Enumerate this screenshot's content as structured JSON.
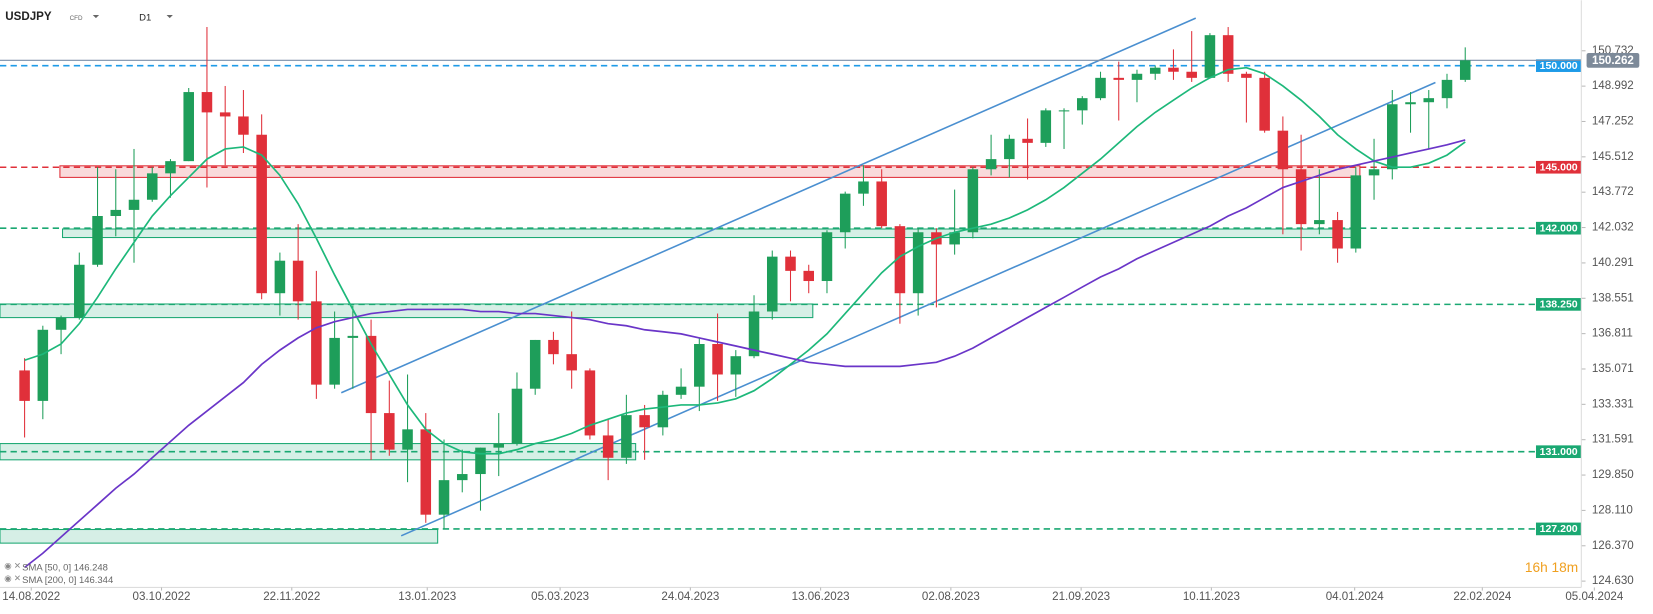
{
  "chart_data": {
    "type": "candlestick",
    "symbol": "USDJPY",
    "instrument": "CFD",
    "timeframe": "D1",
    "countdown": "16h 18m",
    "up_color": "#1e9e5a",
    "down_color": "#e0303a",
    "x": [
      "08.08.2022",
      "15.08.2022",
      "22.08.2022",
      "29.08.2022",
      "05.09.2022",
      "12.09.2022",
      "19.09.2022",
      "26.09.2022",
      "03.10.2022",
      "10.10.2022",
      "17.10.2022",
      "24.10.2022",
      "31.10.2022",
      "07.11.2022",
      "14.11.2022",
      "21.11.2022",
      "28.11.2022",
      "05.12.2022",
      "12.12.2022",
      "19.12.2022",
      "26.12.2022",
      "02.01.2023",
      "09.01.2023",
      "16.01.2023",
      "23.01.2023",
      "30.01.2023",
      "06.02.2023",
      "13.02.2023",
      "20.02.2023",
      "27.02.2023",
      "06.03.2023",
      "13.03.2023",
      "20.03.2023",
      "27.03.2023",
      "03.04.2023",
      "10.04.2023",
      "17.04.2023",
      "24.04.2023",
      "01.05.2023",
      "08.05.2023",
      "15.05.2023",
      "22.05.2023",
      "29.05.2023",
      "05.06.2023",
      "12.06.2023",
      "19.06.2023",
      "26.06.2023",
      "03.07.2023",
      "10.07.2023",
      "17.07.2023",
      "24.07.2023",
      "31.07.2023",
      "07.08.2023",
      "14.08.2023",
      "21.08.2023",
      "28.08.2023",
      "04.09.2023",
      "11.09.2023",
      "18.09.2023",
      "25.09.2023",
      "02.10.2023",
      "09.10.2023",
      "16.10.2023",
      "23.10.2023",
      "30.10.2023",
      "06.11.2023",
      "13.11.2023",
      "20.11.2023",
      "27.11.2023",
      "04.12.2023",
      "11.12.2023",
      "18.12.2023",
      "25.12.2023",
      "01.01.2024",
      "08.01.2024",
      "15.01.2024",
      "22.01.2024",
      "29.01.2024",
      "05.02.2024",
      "12.02.2024"
    ],
    "open": [
      135.0,
      133.5,
      137.0,
      137.6,
      140.2,
      142.6,
      142.9,
      143.4,
      144.7,
      145.3,
      148.7,
      147.7,
      147.5,
      146.6,
      138.8,
      140.4,
      138.4,
      134.3,
      136.6,
      136.7,
      132.9,
      131.1,
      132.1,
      127.9,
      129.6,
      129.9,
      131.2,
      131.4,
      134.1,
      136.5,
      135.8,
      135.0,
      131.8,
      130.7,
      132.8,
      132.2,
      133.8,
      134.2,
      136.3,
      134.8,
      135.7,
      137.9,
      140.6,
      139.9,
      139.4,
      141.8,
      143.7,
      144.3,
      142.1,
      138.8,
      141.8,
      141.2,
      141.8,
      144.9,
      145.4,
      146.4,
      146.2,
      147.8,
      147.8,
      148.4,
      149.4,
      149.3,
      149.6,
      149.9,
      149.7,
      149.4,
      151.5,
      149.6,
      149.4,
      146.8,
      144.9,
      142.2,
      142.4,
      141.0,
      144.6,
      144.9,
      148.1,
      148.2,
      148.4,
      149.3
    ],
    "high": [
      135.6,
      137.2,
      137.7,
      140.8,
      145.0,
      144.9,
      145.9,
      145.0,
      145.4,
      148.9,
      151.9,
      149.0,
      148.8,
      147.6,
      140.8,
      142.2,
      139.9,
      137.9,
      138.2,
      137.5,
      134.5,
      134.8,
      132.9,
      131.6,
      131.1,
      131.2,
      132.9,
      134.9,
      136.5,
      136.9,
      137.9,
      135.1,
      132.6,
      133.8,
      133.3,
      134.0,
      135.1,
      136.6,
      137.8,
      136.0,
      138.7,
      140.9,
      140.9,
      140.2,
      141.9,
      143.8,
      145.1,
      144.9,
      142.2,
      142.0,
      142.0,
      143.9,
      145.0,
      146.6,
      146.6,
      147.4,
      147.9,
      147.9,
      148.5,
      149.7,
      150.2,
      149.8,
      150.0,
      150.8,
      151.7,
      151.6,
      151.9,
      149.7,
      149.7,
      147.5,
      146.6,
      144.9,
      142.8,
      145.0,
      146.4,
      148.8,
      148.7,
      148.8,
      149.6,
      150.9
    ],
    "low": [
      131.7,
      132.6,
      135.8,
      137.5,
      140.1,
      141.6,
      140.3,
      143.3,
      143.5,
      145.3,
      144.0,
      145.1,
      145.7,
      138.5,
      137.7,
      137.5,
      133.6,
      134.1,
      134.1,
      130.6,
      130.8,
      129.5,
      127.5,
      127.2,
      129.0,
      128.1,
      129.8,
      131.3,
      133.8,
      135.3,
      134.1,
      131.6,
      129.6,
      130.4,
      130.6,
      131.8,
      133.6,
      133.0,
      133.5,
      133.7,
      135.6,
      137.5,
      138.4,
      138.8,
      138.8,
      141.0,
      143.1,
      142.0,
      137.3,
      137.7,
      138.1,
      140.7,
      141.5,
      144.6,
      144.5,
      144.4,
      146.0,
      145.9,
      147.1,
      148.3,
      147.3,
      148.2,
      149.3,
      149.3,
      149.2,
      149.4,
      149.2,
      147.2,
      146.7,
      141.7,
      140.9,
      141.7,
      140.3,
      140.8,
      143.4,
      144.4,
      146.7,
      145.9,
      147.9,
      149.2
    ],
    "close": [
      133.5,
      137.0,
      137.6,
      140.2,
      142.6,
      142.9,
      143.4,
      144.7,
      145.3,
      148.7,
      147.7,
      147.5,
      146.6,
      138.8,
      140.4,
      138.4,
      134.3,
      136.6,
      136.7,
      132.9,
      131.1,
      132.1,
      127.9,
      129.6,
      129.9,
      131.2,
      131.4,
      134.1,
      136.5,
      135.8,
      135.0,
      131.8,
      130.7,
      132.8,
      132.2,
      133.8,
      134.2,
      136.3,
      134.8,
      135.7,
      137.9,
      140.6,
      139.9,
      139.4,
      141.8,
      143.7,
      144.3,
      142.1,
      138.8,
      141.8,
      141.2,
      141.8,
      144.9,
      145.4,
      146.4,
      146.2,
      147.8,
      147.8,
      148.4,
      149.4,
      149.3,
      149.6,
      149.9,
      149.7,
      149.4,
      151.5,
      149.6,
      149.4,
      146.8,
      144.9,
      142.2,
      142.4,
      141.0,
      144.6,
      144.9,
      148.1,
      148.2,
      148.4,
      149.3,
      150.262
    ],
    "indicators": [
      {
        "name": "SMA [50, 0]",
        "color": "#1db87a",
        "values": [
          135.5,
          135.8,
          136.3,
          137.3,
          138.6,
          140.0,
          141.3,
          142.6,
          143.6,
          144.5,
          145.4,
          145.9,
          146.0,
          145.6,
          144.6,
          143.2,
          141.5,
          139.7,
          138.0,
          136.3,
          134.8,
          133.3,
          132.1,
          131.4,
          131.0,
          130.9,
          130.9,
          131.1,
          131.4,
          131.6,
          131.9,
          132.3,
          132.6,
          132.9,
          133.1,
          133.2,
          133.3,
          133.3,
          133.4,
          133.6,
          134.0,
          134.6,
          135.3,
          136.0,
          136.8,
          137.8,
          138.8,
          139.8,
          140.6,
          141.1,
          141.5,
          141.8,
          142.0,
          142.2,
          142.5,
          142.9,
          143.4,
          144.0,
          144.7,
          145.4,
          146.2,
          147.0,
          147.7,
          148.3,
          148.9,
          149.4,
          149.8,
          149.9,
          149.6,
          149.0,
          148.3,
          147.5,
          146.6,
          145.9,
          145.3,
          145.0,
          145.0,
          145.2,
          145.6,
          146.248
        ]
      },
      {
        "name": "SMA [200, 0]",
        "color": "#6a35c8",
        "values": [
          125.3,
          126.0,
          126.8,
          127.6,
          128.4,
          129.2,
          129.9,
          130.7,
          131.5,
          132.3,
          133.0,
          133.7,
          134.4,
          135.3,
          136.0,
          136.6,
          137.1,
          137.4,
          137.6,
          137.8,
          137.9,
          138.0,
          138.0,
          138.0,
          138.0,
          137.9,
          137.9,
          137.8,
          137.8,
          137.7,
          137.6,
          137.5,
          137.3,
          137.2,
          137.0,
          136.9,
          136.8,
          136.6,
          136.4,
          136.2,
          136.0,
          135.8,
          135.6,
          135.4,
          135.3,
          135.2,
          135.2,
          135.2,
          135.2,
          135.3,
          135.4,
          135.7,
          136.1,
          136.6,
          137.1,
          137.6,
          138.1,
          138.6,
          139.1,
          139.6,
          140.0,
          140.5,
          140.9,
          141.3,
          141.7,
          142.1,
          142.6,
          143.0,
          143.5,
          144.0,
          144.3,
          144.6,
          144.9,
          145.1,
          145.3,
          145.5,
          145.7,
          145.9,
          146.1,
          146.344
        ]
      }
    ],
    "levels": [
      {
        "value": 150,
        "label": "150.000",
        "color": "#1e9be8"
      },
      {
        "value": 145,
        "label": "145.000",
        "color": "#e0303a"
      },
      {
        "value": 142,
        "label": "142.000",
        "color": "#1aa872"
      },
      {
        "value": 138.25,
        "label": "138.250",
        "color": "#1aa872"
      },
      {
        "value": 131,
        "label": "131.000",
        "color": "#1aa872"
      },
      {
        "value": 127.2,
        "label": "127.200",
        "color": "#1aa872"
      }
    ],
    "zones": [
      {
        "start": "25.08.2022",
        "end": "06.01.2024",
        "low": 144.5,
        "high": 145.07,
        "color": "#e0303a"
      },
      {
        "start": "26.08.2022",
        "end": "04.01.2024",
        "low": 141.54,
        "high": 141.96,
        "color": "#1aa872"
      },
      {
        "start": "02.08.2022",
        "end": "10.06.2023",
        "low": 137.6,
        "high": 138.27,
        "color": "#1aa872"
      },
      {
        "start": "02.08.2022",
        "end": "03.04.2023",
        "low": 130.6,
        "high": 131.4,
        "color": "#1aa872"
      },
      {
        "start": "02.08.2022",
        "end": "17.01.2023",
        "low": 126.5,
        "high": 127.17,
        "color": "#1aa872"
      }
    ],
    "trendlines": [
      {
        "start": "11.12.2022",
        "end": "04.11.2023",
        "from": 133.9,
        "to": 152.34,
        "color": "#4a8fd0"
      },
      {
        "start": "03.01.2023",
        "end": "04.02.2024",
        "from": 126.86,
        "to": 149.17,
        "color": "#4a8fd0"
      }
    ],
    "xlim": [
      "02.08.2022",
      "31.03.2024"
    ],
    "xticks": [
      "14.08.2022",
      "03.10.2022",
      "22.11.2022",
      "13.01.2023",
      "05.03.2023",
      "24.04.2023",
      "13.06.2023",
      "02.08.2023",
      "21.09.2023",
      "10.11.2023",
      "04.01.2024",
      "22.02.2024",
      "05.04.2024"
    ],
    "ylim": [
      124.32,
      153.22
    ],
    "yticks": [
      {
        "value": 124.63,
        "label": "124.630"
      },
      {
        "value": 126.37,
        "label": "126.370"
      },
      {
        "value": 128.11,
        "label": "128.110"
      },
      {
        "value": 129.85,
        "label": "129.850"
      },
      131.591,
      133.331,
      135.071,
      136.811,
      138.551,
      140.291,
      142.032,
      143.772,
      145.512,
      147.252,
      148.992,
      150.732
    ]
  }
}
